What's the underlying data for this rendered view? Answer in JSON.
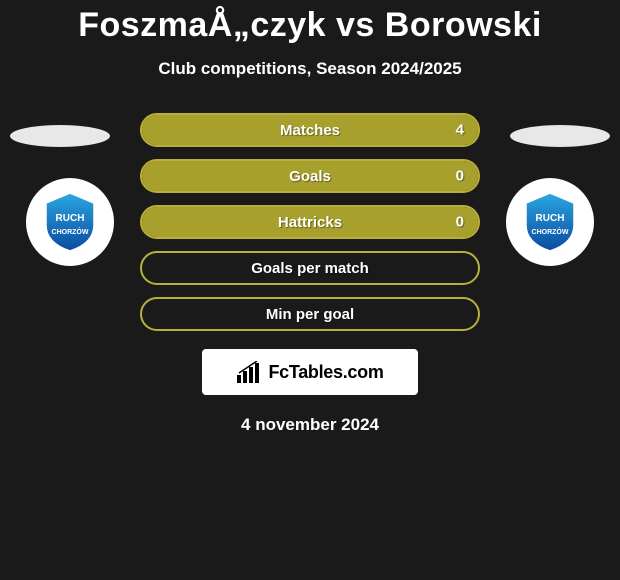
{
  "title": "FoszmaÅ„czyk vs Borowski",
  "subtitle": "Club competitions, Season 2024/2025",
  "date": "4 november 2024",
  "logo_text": "FcTables.com",
  "colors": {
    "background": "#1a1a1a",
    "olive": "#a8a02c",
    "olive_border": "#b8b038",
    "title": "#ffffff",
    "text": "#ffffff",
    "ellipse": "#e8e8e8",
    "badge_bg": "#ffffff",
    "shield_top": "#2aa8e0",
    "shield_bottom": "#0a4aa0"
  },
  "stats": [
    {
      "label": "Matches",
      "left_value": "",
      "right_value": "4",
      "left_pct": 0,
      "right_pct": 100,
      "show_left_value": false,
      "show_right_value": true
    },
    {
      "label": "Goals",
      "left_value": "",
      "right_value": "0",
      "left_pct": 0,
      "right_pct": 100,
      "show_left_value": false,
      "show_right_value": true
    },
    {
      "label": "Hattricks",
      "left_value": "",
      "right_value": "0",
      "left_pct": 0,
      "right_pct": 100,
      "show_left_value": false,
      "show_right_value": true
    },
    {
      "label": "Goals per match",
      "left_value": "",
      "right_value": "",
      "left_pct": 0,
      "right_pct": 0,
      "show_left_value": false,
      "show_right_value": false
    },
    {
      "label": "Min per goal",
      "left_value": "",
      "right_value": "",
      "left_pct": 0,
      "right_pct": 0,
      "show_left_value": false,
      "show_right_value": false
    }
  ],
  "badge_label_line1": "RUCH",
  "badge_label_line2": "CHORZÓW"
}
